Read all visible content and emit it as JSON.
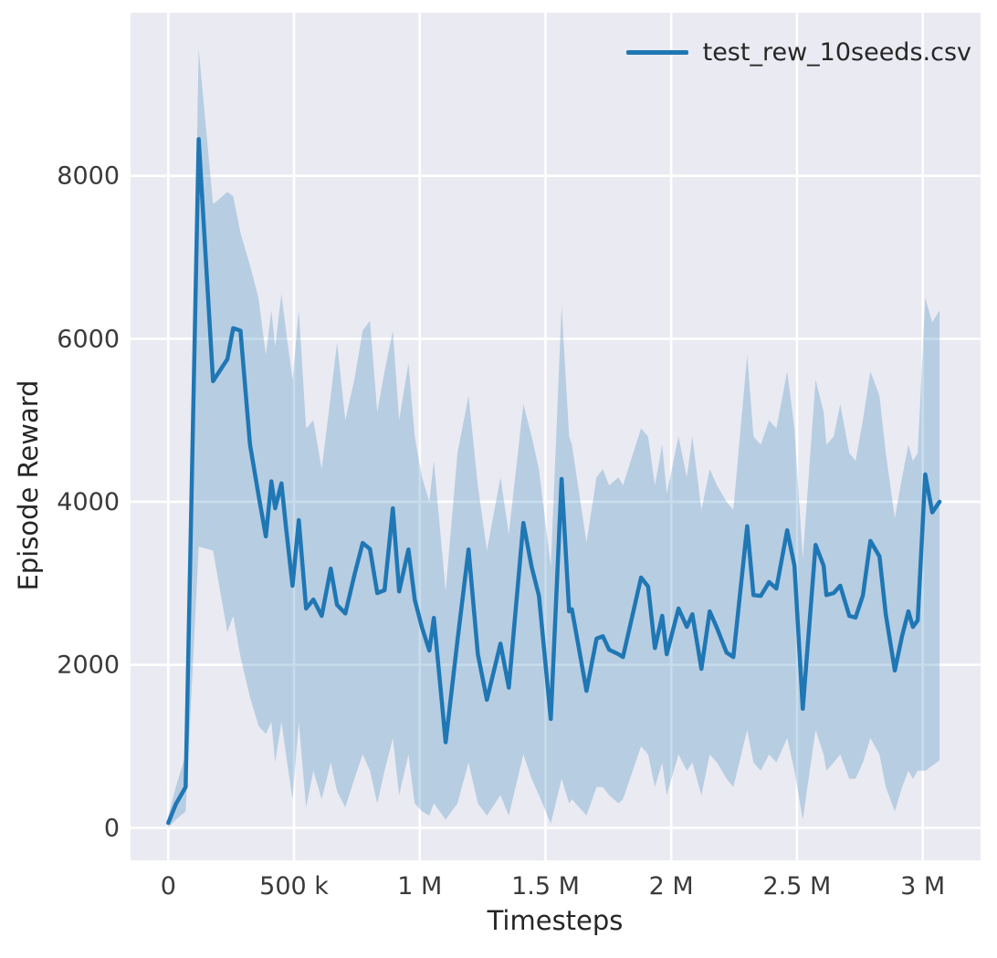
{
  "chart_data": {
    "type": "line",
    "title": "",
    "xlabel": "Timesteps",
    "ylabel": "Episode Reward",
    "xlim": [
      -150000,
      3230000
    ],
    "ylim": [
      -400,
      10000
    ],
    "grid": true,
    "legend_position": "upper right",
    "axes_background": "#eaeaf2",
    "grid_color": "#ffffff",
    "text_color": "#262626",
    "tick_color": "#3a3a3a",
    "x_ticks": [
      {
        "value": 0,
        "label": "0"
      },
      {
        "value": 500000,
        "label": "500 k"
      },
      {
        "value": 1000000,
        "label": "1 M"
      },
      {
        "value": 1500000,
        "label": "1.5 M"
      },
      {
        "value": 2000000,
        "label": "2 M"
      },
      {
        "value": 2500000,
        "label": "2.5 M"
      },
      {
        "value": 3000000,
        "label": "3 M"
      }
    ],
    "y_ticks": [
      {
        "value": 0,
        "label": "0"
      },
      {
        "value": 2000,
        "label": "2000"
      },
      {
        "value": 4000,
        "label": "4000"
      },
      {
        "value": 6000,
        "label": "6000"
      },
      {
        "value": 8000,
        "label": "8000"
      }
    ],
    "series": [
      {
        "name": "test_rew_10seeds.csv",
        "color": "#1f77b4",
        "band_color": "#1f77b4",
        "band_opacity": 0.25,
        "x": [
          0,
          30000,
          69000,
          121000,
          178000,
          235000,
          258000,
          287000,
          325000,
          359000,
          388000,
          410000,
          425000,
          450000,
          468000,
          494000,
          519000,
          548000,
          577000,
          610000,
          646000,
          671000,
          704000,
          740000,
          773000,
          802000,
          831000,
          860000,
          893000,
          918000,
          955000,
          980000,
          1009000,
          1038000,
          1056000,
          1103000,
          1150000,
          1194000,
          1231000,
          1267000,
          1321000,
          1354000,
          1412000,
          1445000,
          1474000,
          1521000,
          1564000,
          1594000,
          1605000,
          1663000,
          1703000,
          1728000,
          1753000,
          1790000,
          1808000,
          1880000,
          1908000,
          1935000,
          1964000,
          1982000,
          2029000,
          2062000,
          2084000,
          2120000,
          2153000,
          2182000,
          2220000,
          2247000,
          2302000,
          2327000,
          2356000,
          2389000,
          2418000,
          2461000,
          2490000,
          2523000,
          2574000,
          2606000,
          2617000,
          2646000,
          2672000,
          2708000,
          2733000,
          2762000,
          2792000,
          2828000,
          2853000,
          2889000,
          2918000,
          2943000,
          2961000,
          2980000,
          3010000,
          3038000,
          3067000
        ],
        "y": [
          60,
          290,
          500,
          8450,
          5480,
          5750,
          6130,
          6100,
          4700,
          4080,
          3575,
          4250,
          3920,
          4225,
          3690,
          2970,
          3775,
          2690,
          2800,
          2600,
          3180,
          2735,
          2630,
          3100,
          3495,
          3420,
          2880,
          2915,
          3920,
          2900,
          3415,
          2800,
          2455,
          2175,
          2575,
          1050,
          2300,
          3415,
          2130,
          1570,
          2260,
          1720,
          3740,
          3200,
          2845,
          1335,
          4280,
          2655,
          2680,
          1680,
          2320,
          2350,
          2185,
          2130,
          2095,
          3070,
          2960,
          2205,
          2600,
          2130,
          2690,
          2465,
          2620,
          1950,
          2655,
          2450,
          2150,
          2095,
          3700,
          2855,
          2845,
          3015,
          2935,
          3650,
          3215,
          1460,
          3470,
          3215,
          2855,
          2880,
          2970,
          2600,
          2580,
          2850,
          3520,
          3330,
          2620,
          1930,
          2355,
          2655,
          2465,
          2545,
          4335,
          3870,
          4000
        ],
        "y_upper": [
          150,
          500,
          900,
          9550,
          7650,
          7800,
          7750,
          7300,
          6900,
          6500,
          5800,
          6350,
          5900,
          6550,
          6100,
          5500,
          6350,
          4900,
          5000,
          4400,
          5300,
          5950,
          5000,
          5500,
          6100,
          6220,
          5100,
          5600,
          6100,
          5000,
          5700,
          4800,
          4300,
          4000,
          4500,
          2900,
          4600,
          5300,
          4200,
          3400,
          4300,
          3600,
          5200,
          4800,
          4400,
          3200,
          6400,
          4800,
          4700,
          3500,
          4300,
          4400,
          4200,
          4300,
          4200,
          4900,
          4800,
          4200,
          4700,
          4100,
          4800,
          4300,
          4800,
          3900,
          4400,
          4200,
          4000,
          3900,
          5800,
          4800,
          4700,
          5000,
          4900,
          5600,
          4900,
          3300,
          5500,
          5100,
          4700,
          4800,
          5200,
          4600,
          4500,
          5000,
          5600,
          5300,
          4600,
          3800,
          4300,
          4700,
          4500,
          4600,
          6500,
          6200,
          6350
        ],
        "y_lower": [
          0,
          100,
          200,
          3450,
          3400,
          2400,
          2600,
          2100,
          1600,
          1250,
          1150,
          1300,
          800,
          1300,
          900,
          350,
          1300,
          250,
          700,
          350,
          800,
          450,
          250,
          600,
          900,
          700,
          300,
          700,
          1100,
          400,
          900,
          300,
          200,
          150,
          300,
          100,
          300,
          800,
          300,
          150,
          400,
          150,
          900,
          600,
          400,
          50,
          600,
          300,
          350,
          150,
          500,
          500,
          400,
          300,
          350,
          1000,
          900,
          500,
          800,
          400,
          900,
          700,
          800,
          400,
          900,
          800,
          600,
          500,
          1200,
          800,
          700,
          900,
          800,
          1100,
          700,
          100,
          1200,
          900,
          700,
          800,
          900,
          600,
          600,
          800,
          1100,
          900,
          500,
          200,
          500,
          700,
          600,
          700,
          700,
          760,
          830
        ]
      }
    ]
  }
}
